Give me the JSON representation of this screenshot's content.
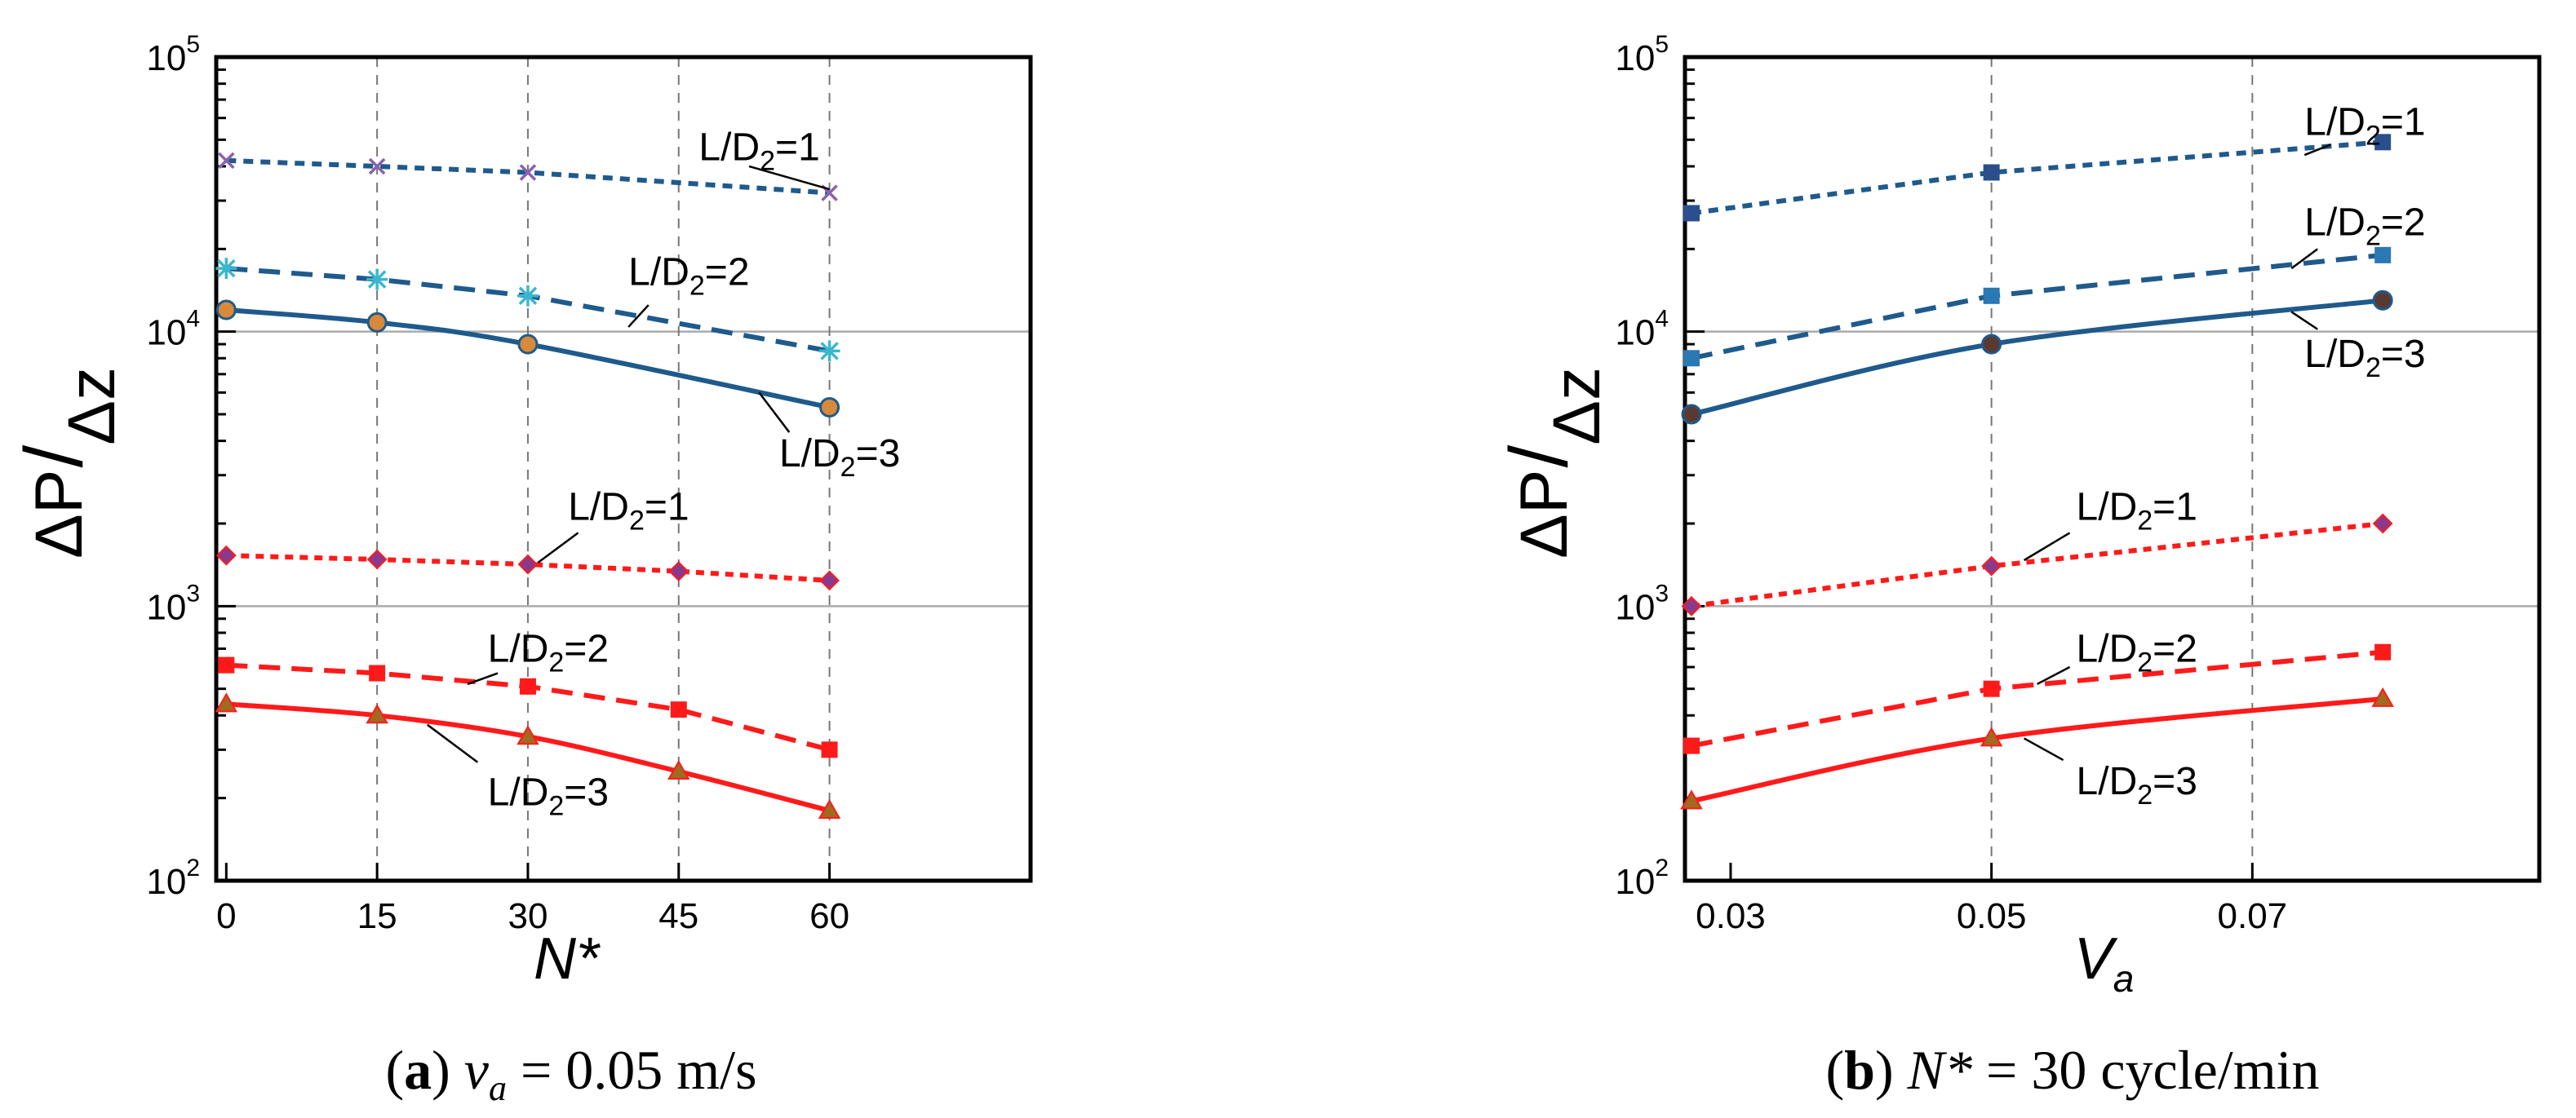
{
  "chart_data": [
    {
      "type": "line",
      "panel": "a",
      "yscale": "log",
      "ylabel_delta": "ΔP",
      "ylabel_over": "Δz",
      "xlabel": "N*",
      "xlim": [
        -1,
        80
      ],
      "ylim": [
        100,
        100000
      ],
      "xticks": [
        0,
        15,
        30,
        45,
        60
      ],
      "xtick_labels": [
        "0",
        "15",
        "30",
        "45",
        "60"
      ],
      "yticks": [
        100,
        1000,
        10000,
        100000
      ],
      "ytick_bases": [
        "10",
        "10",
        "10",
        "10"
      ],
      "ytick_exps": [
        "2",
        "3",
        "4",
        "5"
      ],
      "vgrid": [
        15,
        30,
        45,
        60
      ],
      "hgrid": [
        1000,
        10000
      ],
      "caption": {
        "open": "(",
        "letter": "a",
        "close": ")",
        "var": "v",
        "sub": "a",
        "rest": " = 0.05   m/s"
      },
      "series": [
        {
          "name": "L/D₂=1 (blue)",
          "group": "blue",
          "color": "#1f5a8c",
          "dash": "12 9",
          "marker": "x",
          "marker_color": "#8a62b0",
          "x": [
            0,
            15,
            30,
            60
          ],
          "y": [
            42000,
            40000,
            38000,
            32000
          ]
        },
        {
          "name": "L/D₂=2 (blue)",
          "group": "blue",
          "color": "#1f5a8c",
          "dash": "26 14",
          "marker": "star",
          "marker_color": "#3bb6cf",
          "x": [
            0,
            15,
            30,
            60
          ],
          "y": [
            17000,
            15500,
            13500,
            8500
          ]
        },
        {
          "name": "L/D₂=3 (blue)",
          "group": "blue",
          "color": "#1f5a8c",
          "dash": "",
          "marker": "circle",
          "marker_color": "#d9893a",
          "x": [
            0,
            15,
            30,
            60
          ],
          "y": [
            12000,
            10800,
            9000,
            5300
          ]
        },
        {
          "name": "L/D₂=1 (red)",
          "group": "red",
          "color": "#ff1a1a",
          "dash": "10 8",
          "marker": "diamond",
          "marker_color": "#8a3a8c",
          "x": [
            0,
            15,
            30,
            45,
            60
          ],
          "y": [
            1530,
            1480,
            1420,
            1340,
            1240
          ]
        },
        {
          "name": "L/D₂=2 (red)",
          "group": "red",
          "color": "#ff1a1a",
          "dash": "26 14",
          "marker": "square",
          "marker_color": "#ff1a1a",
          "x": [
            0,
            15,
            30,
            45,
            60
          ],
          "y": [
            610,
            570,
            510,
            420,
            300
          ]
        },
        {
          "name": "L/D₂=3 (red)",
          "group": "red",
          "color": "#ff1a1a",
          "dash": "",
          "marker": "triangle",
          "marker_color": "#a06a20",
          "x": [
            0,
            15,
            30,
            45,
            60
          ],
          "y": [
            440,
            400,
            335,
            250,
            180
          ]
        }
      ],
      "annotations": [
        {
          "pre": "L/D",
          "sub": "2",
          "post": "=1",
          "anchor": [
            47,
            47000
          ],
          "from": [
            52,
            40000
          ],
          "to": [
            60,
            33000
          ]
        },
        {
          "pre": "L/D",
          "sub": "2",
          "post": "=2",
          "anchor": [
            40,
            16500
          ],
          "from": [
            42,
            12500
          ],
          "to": [
            40,
            10400
          ]
        },
        {
          "pre": "L/D",
          "sub": "2",
          "post": "=3",
          "anchor": [
            55,
            3600
          ],
          "from": [
            56,
            4300
          ],
          "to": [
            53,
            6000
          ]
        },
        {
          "pre": "L/D",
          "sub": "2",
          "post": "=1",
          "anchor": [
            34,
            2300
          ],
          "from": [
            35,
            1850
          ],
          "to": [
            31,
            1440
          ]
        },
        {
          "pre": "L/D",
          "sub": "2",
          "post": "=2",
          "anchor": [
            26,
            700
          ],
          "from": [
            27,
            570
          ],
          "to": [
            24,
            520
          ]
        },
        {
          "pre": "L/D",
          "sub": "2",
          "post": "=3",
          "anchor": [
            26,
            210
          ],
          "from": [
            25,
            270
          ],
          "to": [
            20,
            370
          ]
        }
      ]
    },
    {
      "type": "line",
      "panel": "b",
      "yscale": "log",
      "ylabel_delta": "ΔP",
      "ylabel_over": "Δz",
      "xlabel": "V",
      "xlabel_sub": "a",
      "xlim": [
        0.0265,
        0.092
      ],
      "ylim": [
        100,
        100000
      ],
      "xticks": [
        0.03,
        0.05,
        0.07
      ],
      "xtick_labels": [
        "0.03",
        "0.05",
        "0.07"
      ],
      "yticks": [
        100,
        1000,
        10000,
        100000
      ],
      "ytick_bases": [
        "10",
        "10",
        "10",
        "10"
      ],
      "ytick_exps": [
        "2",
        "3",
        "4",
        "5"
      ],
      "vgrid": [
        0.05,
        0.07
      ],
      "hgrid": [
        1000,
        10000
      ],
      "caption": {
        "open": "(",
        "letter": "b",
        "close": ")",
        "var": "N*",
        "sub": "",
        "rest": " = 30 cycle/min"
      },
      "series": [
        {
          "name": "L/D₂=1 (blue)",
          "group": "blue",
          "color": "#1f5a8c",
          "dash": "12 9",
          "marker": "square",
          "marker_color": "#2a4f8c",
          "x": [
            0.027,
            0.05,
            0.08
          ],
          "y": [
            27000,
            38000,
            49000
          ]
        },
        {
          "name": "L/D₂=2 (blue)",
          "group": "blue",
          "color": "#1f5a8c",
          "dash": "26 14",
          "marker": "square",
          "marker_color": "#2a78b4",
          "x": [
            0.027,
            0.05,
            0.08
          ],
          "y": [
            8000,
            13500,
            19000
          ]
        },
        {
          "name": "L/D₂=3 (blue)",
          "group": "blue",
          "color": "#1f5a8c",
          "dash": "",
          "marker": "circle",
          "marker_color": "#5a3a30",
          "x": [
            0.027,
            0.05,
            0.08
          ],
          "y": [
            5000,
            9000,
            13000
          ]
        },
        {
          "name": "L/D₂=1 (red)",
          "group": "red",
          "color": "#ff1a1a",
          "dash": "10 8",
          "marker": "diamond",
          "marker_color": "#8a3a8c",
          "x": [
            0.027,
            0.05,
            0.08
          ],
          "y": [
            1000,
            1400,
            2000
          ]
        },
        {
          "name": "L/D₂=2 (red)",
          "group": "red",
          "color": "#ff1a1a",
          "dash": "26 14",
          "marker": "square",
          "marker_color": "#ff1a1a",
          "x": [
            0.027,
            0.05,
            0.08
          ],
          "y": [
            310,
            500,
            680
          ]
        },
        {
          "name": "L/D₂=3 (red)",
          "group": "red",
          "color": "#ff1a1a",
          "dash": "",
          "marker": "triangle",
          "marker_color": "#a06a20",
          "x": [
            0.027,
            0.05,
            0.08
          ],
          "y": [
            195,
            330,
            460
          ]
        }
      ],
      "annotations": [
        {
          "pre": "L/D",
          "sub": "2",
          "post": "=1",
          "anchor": [
            0.074,
            58000
          ],
          "from": [
            0.076,
            48000
          ],
          "to": [
            0.074,
            44000
          ]
        },
        {
          "pre": "L/D",
          "sub": "2",
          "post": "=2",
          "anchor": [
            0.074,
            25000
          ],
          "from": [
            0.075,
            20000
          ],
          "to": [
            0.073,
            17000
          ]
        },
        {
          "pre": "L/D",
          "sub": "2",
          "post": "=3",
          "anchor": [
            0.074,
            8300
          ],
          "from": [
            0.075,
            10200
          ],
          "to": [
            0.073,
            11800
          ]
        },
        {
          "pre": "L/D",
          "sub": "2",
          "post": "=1",
          "anchor": [
            0.0565,
            2300
          ],
          "from": [
            0.056,
            1850
          ],
          "to": [
            0.0525,
            1470
          ]
        },
        {
          "pre": "L/D",
          "sub": "2",
          "post": "=2",
          "anchor": [
            0.0565,
            700
          ],
          "from": [
            0.056,
            600
          ],
          "to": [
            0.0535,
            520
          ]
        },
        {
          "pre": "L/D",
          "sub": "2",
          "post": "=3",
          "anchor": [
            0.0565,
            230
          ],
          "from": [
            0.0555,
            275
          ],
          "to": [
            0.0525,
            330
          ]
        }
      ]
    }
  ]
}
